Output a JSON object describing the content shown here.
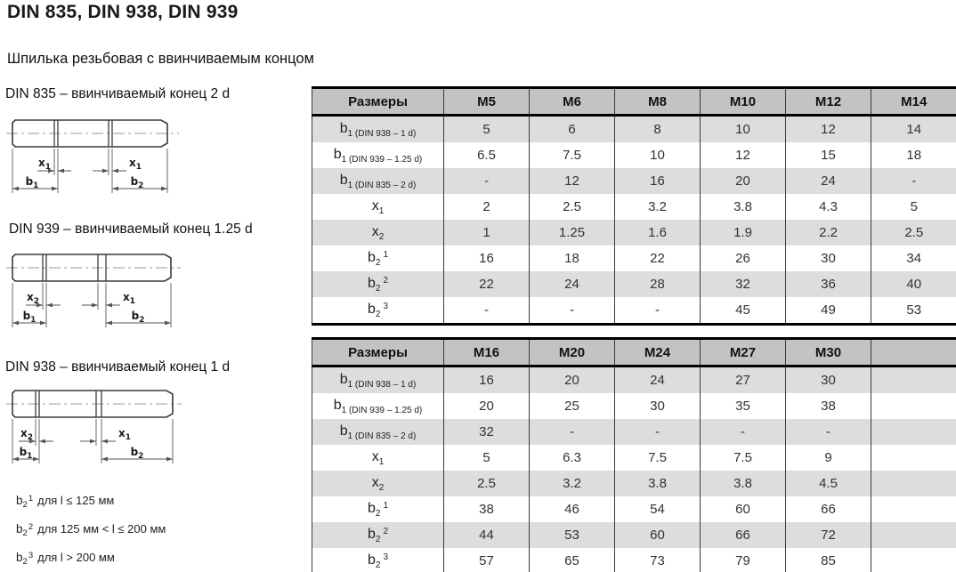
{
  "page": {
    "title": "DIN 835, DIN 938, DIN 939",
    "subtitle": "Шпилька резьбовая с ввинчиваемым концом"
  },
  "diagrams": [
    {
      "caption": "DIN 835 – ввинчиваемый конец 2 d",
      "x_left": {
        "base": "x",
        "sub": "1"
      },
      "x_right": {
        "base": "x",
        "sub": "1"
      },
      "b_left": {
        "base": "b",
        "sub": "1"
      },
      "b_right": {
        "base": "b",
        "sub": "2"
      }
    },
    {
      "caption": "DIN 939 – ввинчиваемый конец 1.25 d",
      "x_left": {
        "base": "x",
        "sub": "2"
      },
      "x_right": {
        "base": "x",
        "sub": "1"
      },
      "b_left": {
        "base": "b",
        "sub": "1"
      },
      "b_right": {
        "base": "b",
        "sub": "2"
      }
    },
    {
      "caption": "DIN 938 – ввинчиваемый конец 1 d",
      "x_left": {
        "base": "x",
        "sub": "2"
      },
      "x_right": {
        "base": "x",
        "sub": "1"
      },
      "b_left": {
        "base": "b",
        "sub": "1"
      },
      "b_right": {
        "base": "b",
        "sub": "2"
      }
    }
  ],
  "footnotes": [
    {
      "base": "b",
      "sub": "2",
      "sup": "1",
      "text": "для l ≤ 125 мм"
    },
    {
      "base": "b",
      "sub": "2",
      "sup": "2",
      "text": "для 125 мм < l ≤ 200 мм"
    },
    {
      "base": "b",
      "sub": "2",
      "sup": "3",
      "text": "для l > 200 мм"
    }
  ],
  "tables": [
    {
      "header": [
        "Размеры",
        "M5",
        "M6",
        "M8",
        "M10",
        "M12",
        "M14"
      ],
      "rows": [
        {
          "base": "b",
          "sub": "1 (DIN 938 – 1 d)",
          "sup": "",
          "values": [
            "5",
            "6",
            "8",
            "10",
            "12",
            "14"
          ]
        },
        {
          "base": "b",
          "sub": "1 (DIN 939 – 1.25 d)",
          "sup": "",
          "values": [
            "6.5",
            "7.5",
            "10",
            "12",
            "15",
            "18"
          ]
        },
        {
          "base": "b",
          "sub": "1 (DIN 835 – 2 d)",
          "sup": "",
          "values": [
            "-",
            "12",
            "16",
            "20",
            "24",
            "-"
          ]
        },
        {
          "base": "x",
          "sub": "1",
          "sup": "",
          "values": [
            "2",
            "2.5",
            "3.2",
            "3.8",
            "4.3",
            "5"
          ]
        },
        {
          "base": "x",
          "sub": "2",
          "sup": "",
          "values": [
            "1",
            "1.25",
            "1.6",
            "1.9",
            "2.2",
            "2.5"
          ]
        },
        {
          "base": "b",
          "sub": "2",
          "sup": "1",
          "values": [
            "16",
            "18",
            "22",
            "26",
            "30",
            "34"
          ]
        },
        {
          "base": "b",
          "sub": "2",
          "sup": "2",
          "values": [
            "22",
            "24",
            "28",
            "32",
            "36",
            "40"
          ]
        },
        {
          "base": "b",
          "sub": "2",
          "sup": "3",
          "values": [
            "-",
            "-",
            "-",
            "45",
            "49",
            "53"
          ]
        }
      ]
    },
    {
      "header": [
        "Размеры",
        "M16",
        "M20",
        "M24",
        "M27",
        "M30",
        ""
      ],
      "rows": [
        {
          "base": "b",
          "sub": "1 (DIN 938 – 1 d)",
          "sup": "",
          "values": [
            "16",
            "20",
            "24",
            "27",
            "30",
            ""
          ]
        },
        {
          "base": "b",
          "sub": "1 (DIN 939 – 1.25 d)",
          "sup": "",
          "values": [
            "20",
            "25",
            "30",
            "35",
            "38",
            ""
          ]
        },
        {
          "base": "b",
          "sub": "1 (DIN 835 – 2 d)",
          "sup": "",
          "values": [
            "32",
            "-",
            "-",
            "-",
            "-",
            ""
          ]
        },
        {
          "base": "x",
          "sub": "1",
          "sup": "",
          "values": [
            "5",
            "6.3",
            "7.5",
            "7.5",
            "9",
            ""
          ]
        },
        {
          "base": "x",
          "sub": "2",
          "sup": "",
          "values": [
            "2.5",
            "3.2",
            "3.8",
            "3.8",
            "4.5",
            ""
          ]
        },
        {
          "base": "b",
          "sub": "2",
          "sup": "1",
          "values": [
            "38",
            "46",
            "54",
            "60",
            "66",
            ""
          ]
        },
        {
          "base": "b",
          "sub": "2",
          "sup": "2",
          "values": [
            "44",
            "53",
            "60",
            "66",
            "72",
            ""
          ]
        },
        {
          "base": "b",
          "sub": "2",
          "sup": "3",
          "values": [
            "57",
            "65",
            "73",
            "79",
            "85",
            ""
          ]
        }
      ]
    }
  ],
  "colors": {
    "header_bg": "#c3c3c3",
    "stripe_bg": "#dddddd",
    "border": "#000000"
  }
}
